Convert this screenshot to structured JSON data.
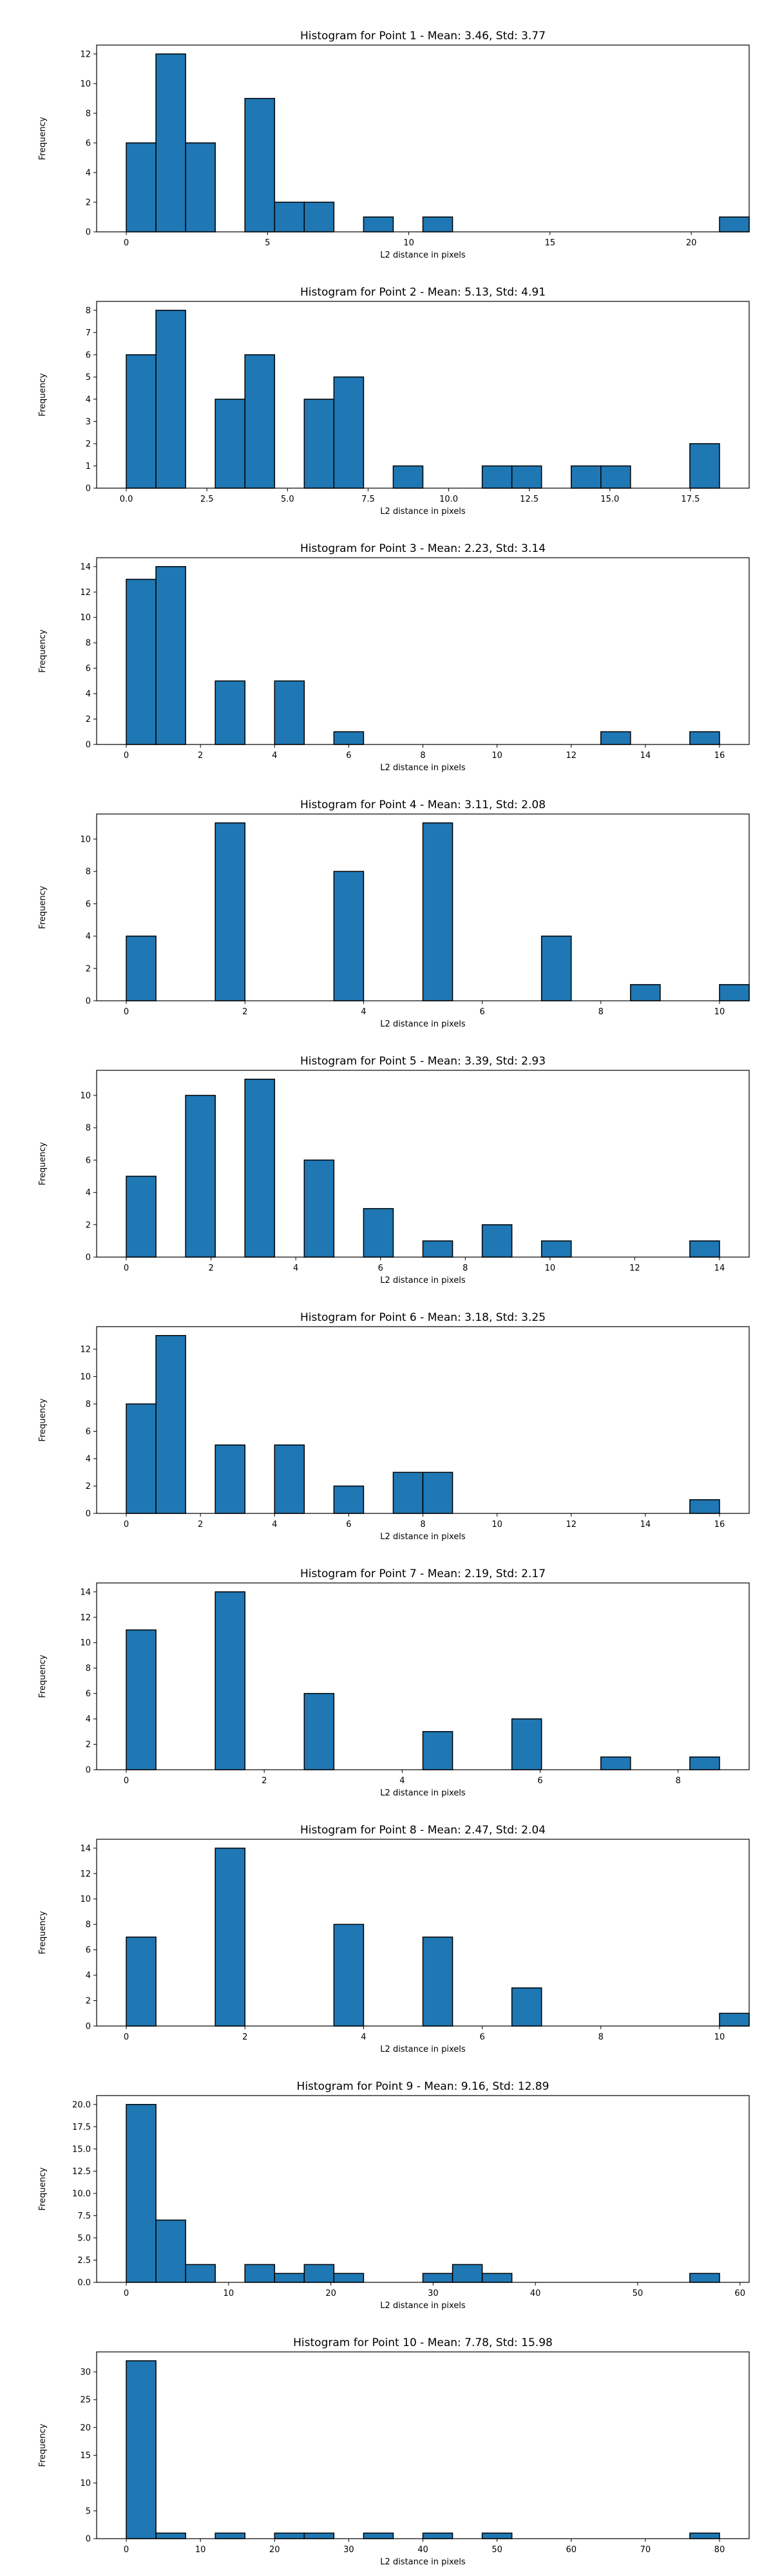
{
  "chart_data": [
    {
      "type": "histogram",
      "title": "Histogram for Point 1 - Mean: 3.46, Std: 3.77",
      "xlabel": "L2 distance in pixels",
      "ylabel": "Frequency",
      "xlim": [
        -1.05,
        22.05
      ],
      "ylim": [
        0,
        12.6
      ],
      "xticks": [
        {
          "v": 0,
          "label": "0"
        },
        {
          "v": 5,
          "label": "5"
        },
        {
          "v": 10,
          "label": "10"
        },
        {
          "v": 15,
          "label": "15"
        },
        {
          "v": 20,
          "label": "20"
        }
      ],
      "yticks": [
        {
          "v": 0,
          "label": "0"
        },
        {
          "v": 2,
          "label": "2"
        },
        {
          "v": 4,
          "label": "4"
        },
        {
          "v": 6,
          "label": "6"
        },
        {
          "v": 8,
          "label": "8"
        },
        {
          "v": 10,
          "label": "10"
        },
        {
          "v": 12,
          "label": "12"
        }
      ],
      "bins": {
        "start": 0,
        "width": 1.05
      },
      "counts": [
        6,
        12,
        6,
        0,
        9,
        2,
        2,
        0,
        1,
        0,
        1,
        0,
        0,
        0,
        0,
        0,
        0,
        0,
        0,
        0,
        1
      ]
    },
    {
      "type": "histogram",
      "title": "Histogram for Point 2 - Mean: 5.13, Std: 4.91",
      "xlabel": "L2 distance in pixels",
      "ylabel": "Frequency",
      "xlim": [
        -0.92,
        19.32
      ],
      "ylim": [
        0,
        8.4
      ],
      "xticks": [
        {
          "v": 0,
          "label": "0.0"
        },
        {
          "v": 2.5,
          "label": "2.5"
        },
        {
          "v": 5,
          "label": "5.0"
        },
        {
          "v": 7.5,
          "label": "7.5"
        },
        {
          "v": 10,
          "label": "10.0"
        },
        {
          "v": 12.5,
          "label": "12.5"
        },
        {
          "v": 15,
          "label": "15.0"
        },
        {
          "v": 17.5,
          "label": "17.5"
        }
      ],
      "yticks": [
        {
          "v": 0,
          "label": "0"
        },
        {
          "v": 1,
          "label": "1"
        },
        {
          "v": 2,
          "label": "2"
        },
        {
          "v": 3,
          "label": "3"
        },
        {
          "v": 4,
          "label": "4"
        },
        {
          "v": 5,
          "label": "5"
        },
        {
          "v": 6,
          "label": "6"
        },
        {
          "v": 7,
          "label": "7"
        },
        {
          "v": 8,
          "label": "8"
        }
      ],
      "bins": {
        "start": 0,
        "width": 0.92
      },
      "counts": [
        6,
        8,
        0,
        4,
        6,
        0,
        4,
        5,
        0,
        1,
        0,
        0,
        1,
        1,
        0,
        1,
        1,
        0,
        0,
        2
      ]
    },
    {
      "type": "histogram",
      "title": "Histogram for Point 3 - Mean: 2.23, Std: 3.14",
      "xlabel": "L2 distance in pixels",
      "ylabel": "Frequency",
      "xlim": [
        -0.8,
        16.8
      ],
      "ylim": [
        0,
        14.7
      ],
      "xticks": [
        {
          "v": 0,
          "label": "0"
        },
        {
          "v": 2,
          "label": "2"
        },
        {
          "v": 4,
          "label": "4"
        },
        {
          "v": 6,
          "label": "6"
        },
        {
          "v": 8,
          "label": "8"
        },
        {
          "v": 10,
          "label": "10"
        },
        {
          "v": 12,
          "label": "12"
        },
        {
          "v": 14,
          "label": "14"
        },
        {
          "v": 16,
          "label": "16"
        }
      ],
      "yticks": [
        {
          "v": 0,
          "label": "0"
        },
        {
          "v": 2,
          "label": "2"
        },
        {
          "v": 4,
          "label": "4"
        },
        {
          "v": 6,
          "label": "6"
        },
        {
          "v": 8,
          "label": "8"
        },
        {
          "v": 10,
          "label": "10"
        },
        {
          "v": 12,
          "label": "12"
        },
        {
          "v": 14,
          "label": "14"
        }
      ],
      "bins": {
        "start": 0,
        "width": 0.8
      },
      "counts": [
        13,
        14,
        0,
        5,
        0,
        5,
        0,
        1,
        0,
        0,
        0,
        0,
        0,
        0,
        0,
        0,
        1,
        0,
        0,
        1
      ]
    },
    {
      "type": "histogram",
      "title": "Histogram for Point 4 - Mean: 3.11, Std: 2.08",
      "xlabel": "L2 distance in pixels",
      "ylabel": "Frequency",
      "xlim": [
        -0.5,
        10.5
      ],
      "ylim": [
        0,
        11.55
      ],
      "xticks": [
        {
          "v": 0,
          "label": "0"
        },
        {
          "v": 2,
          "label": "2"
        },
        {
          "v": 4,
          "label": "4"
        },
        {
          "v": 6,
          "label": "6"
        },
        {
          "v": 8,
          "label": "8"
        },
        {
          "v": 10,
          "label": "10"
        }
      ],
      "yticks": [
        {
          "v": 0,
          "label": "0"
        },
        {
          "v": 2,
          "label": "2"
        },
        {
          "v": 4,
          "label": "4"
        },
        {
          "v": 6,
          "label": "6"
        },
        {
          "v": 8,
          "label": "8"
        },
        {
          "v": 10,
          "label": "10"
        }
      ],
      "bins": {
        "start": 0,
        "width": 0.5
      },
      "counts": [
        4,
        0,
        0,
        11,
        0,
        0,
        0,
        8,
        0,
        0,
        11,
        0,
        0,
        0,
        4,
        0,
        0,
        1,
        0,
        0,
        1
      ]
    },
    {
      "type": "histogram",
      "title": "Histogram for Point 5 - Mean: 3.39, Std: 2.93",
      "xlabel": "L2 distance in pixels",
      "ylabel": "Frequency",
      "xlim": [
        -0.7,
        14.7
      ],
      "ylim": [
        0,
        11.55
      ],
      "xticks": [
        {
          "v": 0,
          "label": "0"
        },
        {
          "v": 2,
          "label": "2"
        },
        {
          "v": 4,
          "label": "4"
        },
        {
          "v": 6,
          "label": "6"
        },
        {
          "v": 8,
          "label": "8"
        },
        {
          "v": 10,
          "label": "10"
        },
        {
          "v": 12,
          "label": "12"
        },
        {
          "v": 14,
          "label": "14"
        }
      ],
      "yticks": [
        {
          "v": 0,
          "label": "0"
        },
        {
          "v": 2,
          "label": "2"
        },
        {
          "v": 4,
          "label": "4"
        },
        {
          "v": 6,
          "label": "6"
        },
        {
          "v": 8,
          "label": "8"
        },
        {
          "v": 10,
          "label": "10"
        }
      ],
      "bins": {
        "start": 0,
        "width": 0.7
      },
      "counts": [
        5,
        0,
        10,
        0,
        11,
        0,
        6,
        0,
        3,
        0,
        1,
        0,
        2,
        0,
        1,
        0,
        0,
        0,
        0,
        1
      ]
    },
    {
      "type": "histogram",
      "title": "Histogram for Point 6 - Mean: 3.18, Std: 3.25",
      "xlabel": "L2 distance in pixels",
      "ylabel": "Frequency",
      "xlim": [
        -0.8,
        16.8
      ],
      "ylim": [
        0,
        13.65
      ],
      "xticks": [
        {
          "v": 0,
          "label": "0"
        },
        {
          "v": 2,
          "label": "2"
        },
        {
          "v": 4,
          "label": "4"
        },
        {
          "v": 6,
          "label": "6"
        },
        {
          "v": 8,
          "label": "8"
        },
        {
          "v": 10,
          "label": "10"
        },
        {
          "v": 12,
          "label": "12"
        },
        {
          "v": 14,
          "label": "14"
        },
        {
          "v": 16,
          "label": "16"
        }
      ],
      "yticks": [
        {
          "v": 0,
          "label": "0"
        },
        {
          "v": 2,
          "label": "2"
        },
        {
          "v": 4,
          "label": "4"
        },
        {
          "v": 6,
          "label": "6"
        },
        {
          "v": 8,
          "label": "8"
        },
        {
          "v": 10,
          "label": "10"
        },
        {
          "v": 12,
          "label": "12"
        }
      ],
      "bins": {
        "start": 0,
        "width": 0.8
      },
      "counts": [
        8,
        13,
        0,
        5,
        0,
        5,
        0,
        2,
        0,
        3,
        3,
        0,
        0,
        0,
        0,
        0,
        0,
        0,
        0,
        1
      ]
    },
    {
      "type": "histogram",
      "title": "Histogram for Point 7 - Mean: 2.19, Std: 2.17",
      "xlabel": "L2 distance in pixels",
      "ylabel": "Frequency",
      "xlim": [
        -0.43,
        9.03
      ],
      "ylim": [
        0,
        14.7
      ],
      "xticks": [
        {
          "v": 0,
          "label": "0"
        },
        {
          "v": 2,
          "label": "2"
        },
        {
          "v": 4,
          "label": "4"
        },
        {
          "v": 6,
          "label": "6"
        },
        {
          "v": 8,
          "label": "8"
        }
      ],
      "yticks": [
        {
          "v": 0,
          "label": "0"
        },
        {
          "v": 2,
          "label": "2"
        },
        {
          "v": 4,
          "label": "4"
        },
        {
          "v": 6,
          "label": "6"
        },
        {
          "v": 8,
          "label": "8"
        },
        {
          "v": 10,
          "label": "10"
        },
        {
          "v": 12,
          "label": "12"
        },
        {
          "v": 14,
          "label": "14"
        }
      ],
      "bins": {
        "start": 0,
        "width": 0.43
      },
      "counts": [
        11,
        0,
        0,
        14,
        0,
        0,
        6,
        0,
        0,
        0,
        3,
        0,
        0,
        4,
        0,
        0,
        1,
        0,
        0,
        1
      ]
    },
    {
      "type": "histogram",
      "title": "Histogram for Point 8 - Mean: 2.47, Std: 2.04",
      "xlabel": "L2 distance in pixels",
      "ylabel": "Frequency",
      "xlim": [
        -0.5,
        10.5
      ],
      "ylim": [
        0,
        14.7
      ],
      "xticks": [
        {
          "v": 0,
          "label": "0"
        },
        {
          "v": 2,
          "label": "2"
        },
        {
          "v": 4,
          "label": "4"
        },
        {
          "v": 6,
          "label": "6"
        },
        {
          "v": 8,
          "label": "8"
        },
        {
          "v": 10,
          "label": "10"
        }
      ],
      "yticks": [
        {
          "v": 0,
          "label": "0"
        },
        {
          "v": 2,
          "label": "2"
        },
        {
          "v": 4,
          "label": "4"
        },
        {
          "v": 6,
          "label": "6"
        },
        {
          "v": 8,
          "label": "8"
        },
        {
          "v": 10,
          "label": "10"
        },
        {
          "v": 12,
          "label": "12"
        },
        {
          "v": 14,
          "label": "14"
        }
      ],
      "bins": {
        "start": 0,
        "width": 0.5
      },
      "counts": [
        7,
        0,
        0,
        14,
        0,
        0,
        0,
        8,
        0,
        0,
        7,
        0,
        0,
        3,
        0,
        0,
        0,
        0,
        0,
        0,
        1
      ]
    },
    {
      "type": "histogram",
      "title": "Histogram for Point 9 - Mean: 9.16, Std: 12.89",
      "xlabel": "L2 distance in pixels",
      "ylabel": "Frequency",
      "xlim": [
        -2.9,
        60.9
      ],
      "ylim": [
        0,
        21.0
      ],
      "xticks": [
        {
          "v": 0,
          "label": "0"
        },
        {
          "v": 10,
          "label": "10"
        },
        {
          "v": 20,
          "label": "20"
        },
        {
          "v": 30,
          "label": "30"
        },
        {
          "v": 40,
          "label": "40"
        },
        {
          "v": 50,
          "label": "50"
        },
        {
          "v": 60,
          "label": "60"
        }
      ],
      "yticks": [
        {
          "v": 0,
          "label": "0.0"
        },
        {
          "v": 2.5,
          "label": "2.5"
        },
        {
          "v": 5,
          "label": "5.0"
        },
        {
          "v": 7.5,
          "label": "7.5"
        },
        {
          "v": 10,
          "label": "10.0"
        },
        {
          "v": 12.5,
          "label": "12.5"
        },
        {
          "v": 15,
          "label": "15.0"
        },
        {
          "v": 17.5,
          "label": "17.5"
        },
        {
          "v": 20,
          "label": "20.0"
        }
      ],
      "bins": {
        "start": 0,
        "width": 2.9
      },
      "counts": [
        20,
        7,
        2,
        0,
        2,
        1,
        2,
        1,
        0,
        0,
        1,
        2,
        1,
        0,
        0,
        0,
        0,
        0,
        0,
        1
      ]
    },
    {
      "type": "histogram",
      "title": "Histogram for Point 10 - Mean: 7.78, Std: 15.98",
      "xlabel": "L2 distance in pixels",
      "ylabel": "Frequency",
      "xlim": [
        -4.0,
        84.0
      ],
      "ylim": [
        0,
        33.6
      ],
      "xticks": [
        {
          "v": 0,
          "label": "0"
        },
        {
          "v": 10,
          "label": "10"
        },
        {
          "v": 20,
          "label": "20"
        },
        {
          "v": 30,
          "label": "30"
        },
        {
          "v": 40,
          "label": "40"
        },
        {
          "v": 50,
          "label": "50"
        },
        {
          "v": 60,
          "label": "60"
        },
        {
          "v": 70,
          "label": "70"
        },
        {
          "v": 80,
          "label": "80"
        }
      ],
      "yticks": [
        {
          "v": 0,
          "label": "0"
        },
        {
          "v": 5,
          "label": "5"
        },
        {
          "v": 10,
          "label": "10"
        },
        {
          "v": 15,
          "label": "15"
        },
        {
          "v": 20,
          "label": "20"
        },
        {
          "v": 25,
          "label": "25"
        },
        {
          "v": 30,
          "label": "30"
        }
      ],
      "bins": {
        "start": 0,
        "width": 4.0
      },
      "counts": [
        32,
        1,
        0,
        1,
        0,
        1,
        1,
        0,
        1,
        0,
        1,
        0,
        1,
        0,
        0,
        0,
        0,
        0,
        0,
        1
      ]
    }
  ],
  "colors": {
    "bar_fill": "#1f77b4",
    "bar_edge": "#000000",
    "axes": "#000000"
  }
}
